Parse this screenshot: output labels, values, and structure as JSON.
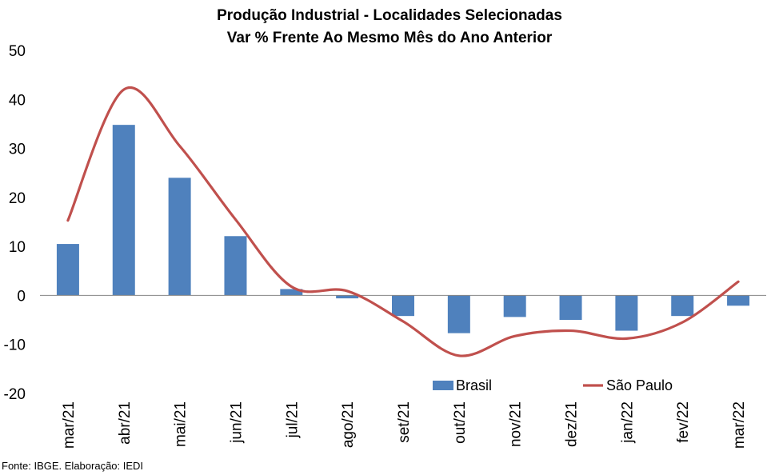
{
  "chart_data": {
    "type": "bar",
    "title": "Produção Industrial - Localidades Selecionadas",
    "subtitle": "Var % Frente Ao Mesmo Mês do Ano Anterior",
    "categories": [
      "mar/21",
      "abr/21",
      "mai/21",
      "jun/21",
      "jul/21",
      "ago/21",
      "set/21",
      "out/21",
      "nov/21",
      "dez/21",
      "jan/22",
      "fev/22",
      "mar/22"
    ],
    "series": [
      {
        "name": "Brasil",
        "type": "bar",
        "color": "#4F81BD",
        "values": [
          10.5,
          34.8,
          24.0,
          12.1,
          1.3,
          -0.6,
          -4.2,
          -7.7,
          -4.4,
          -5.0,
          -7.2,
          -4.2,
          -2.1
        ]
      },
      {
        "name": "São Paulo",
        "type": "line",
        "smooth": true,
        "color": "#C0504D",
        "values": [
          15.3,
          42.0,
          30.5,
          15.5,
          1.8,
          0.9,
          -5.3,
          -12.3,
          -8.3,
          -7.2,
          -8.8,
          -5.5,
          2.8
        ]
      }
    ],
    "ylim": [
      -20,
      50
    ],
    "yticks": [
      -20,
      -10,
      0,
      10,
      20,
      30,
      40,
      50
    ],
    "xlabel": "",
    "ylabel": "",
    "grid": false,
    "legend": "bottom-right"
  },
  "footer": {
    "source": "Fonte: IBGE. Elaboração: IEDI"
  }
}
